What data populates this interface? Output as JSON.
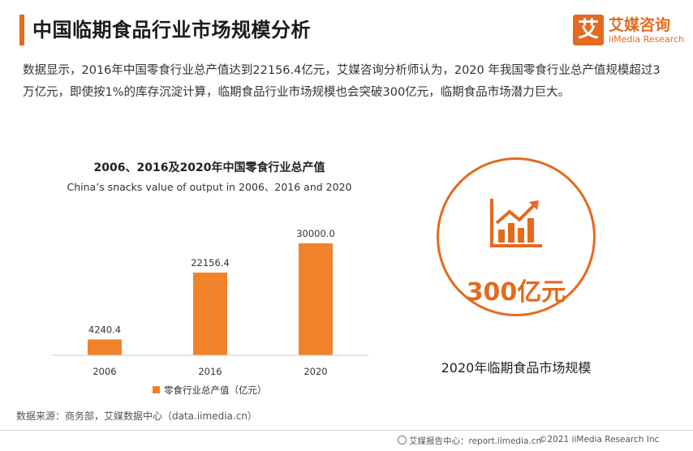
{
  "header": {
    "title": "中国临期食品行业市场规模分析",
    "logo_mark": "艾",
    "logo_cn": "艾媒咨询",
    "logo_en": "iiMedia Research"
  },
  "description": "数据显示，2016年中国零食行业总产值达到22156.4亿元，艾媒咨询分析师认为，2020 年我国零食行业总产值规模超过3万亿元，即使按1%的库存沉淀计算，临期食品行业市场规模也会突破300亿元，临期食品市场潜力巨大。",
  "chart_data": {
    "type": "bar",
    "title": "2006、2016及2020年中国零食行业总产值",
    "subtitle": "China’s snacks value of output in 2006、2016 and 2020",
    "categories": [
      "2006",
      "2016",
      "2020"
    ],
    "series": [
      {
        "name": "零食行业总产值（亿元）",
        "values": [
          4240.4,
          22156.4,
          30000.0
        ]
      }
    ],
    "value_labels": [
      "4240.4",
      "22156.4",
      "30000.0"
    ],
    "ylim": [
      0,
      30000
    ],
    "grid": false,
    "legend": "bottom",
    "color": "#f0832a"
  },
  "highlight": {
    "value": "300亿元",
    "caption": "2020年临期食品市场规模",
    "icon": "bar-chart-growth-icon",
    "color": "#e36a1e"
  },
  "source": "数据来源：商务部，艾媒数据中心（data.iimedia.cn）",
  "footer": {
    "left": "艾媒报告中心：report.iimedia.cn",
    "right": "©2021  iiMedia Research  Inc"
  }
}
